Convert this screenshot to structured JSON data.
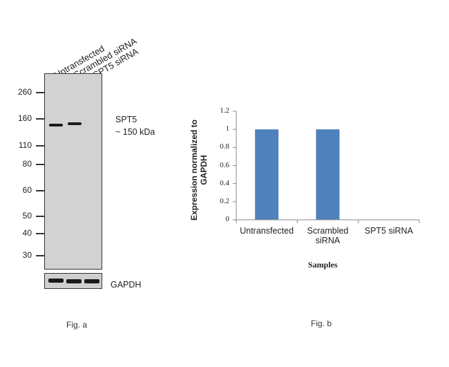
{
  "fig_a": {
    "lanes": [
      "Untransfected",
      "Scrambled siRNA",
      "SPT5 siRNA"
    ],
    "mw_markers": [
      "260",
      "160",
      "110",
      "80",
      "60",
      "50",
      "40",
      "30"
    ],
    "target_label": "SPT5",
    "target_size": "~ 150 kDa",
    "loading_control": "GAPDH",
    "caption": "Fig. a"
  },
  "fig_b": {
    "caption": "Fig. b",
    "ylabel": "Expression normalized to GAPDH",
    "ylabel_line1": "Expression normalized to",
    "ylabel_line2": "GAPDH",
    "xlabel": "Samples",
    "bar_color": "#4f81bd"
  },
  "chart_data": {
    "type": "bar",
    "categories": [
      "Untransfected",
      "Scrambled siRNA",
      "SPT5 siRNA"
    ],
    "category_lines": [
      [
        "Untransfected"
      ],
      [
        "Scrambled",
        "siRNA"
      ],
      [
        "SPT5 siRNA"
      ]
    ],
    "values": [
      1,
      1,
      0
    ],
    "xlabel": "Samples",
    "ylabel": "Expression normalized to GAPDH",
    "ylim": [
      0,
      1.2
    ],
    "yticks": [
      "0",
      "0.2",
      "0.4",
      "0.6",
      "0.8",
      "1",
      "1.2"
    ],
    "grid": false,
    "legend": "none"
  }
}
